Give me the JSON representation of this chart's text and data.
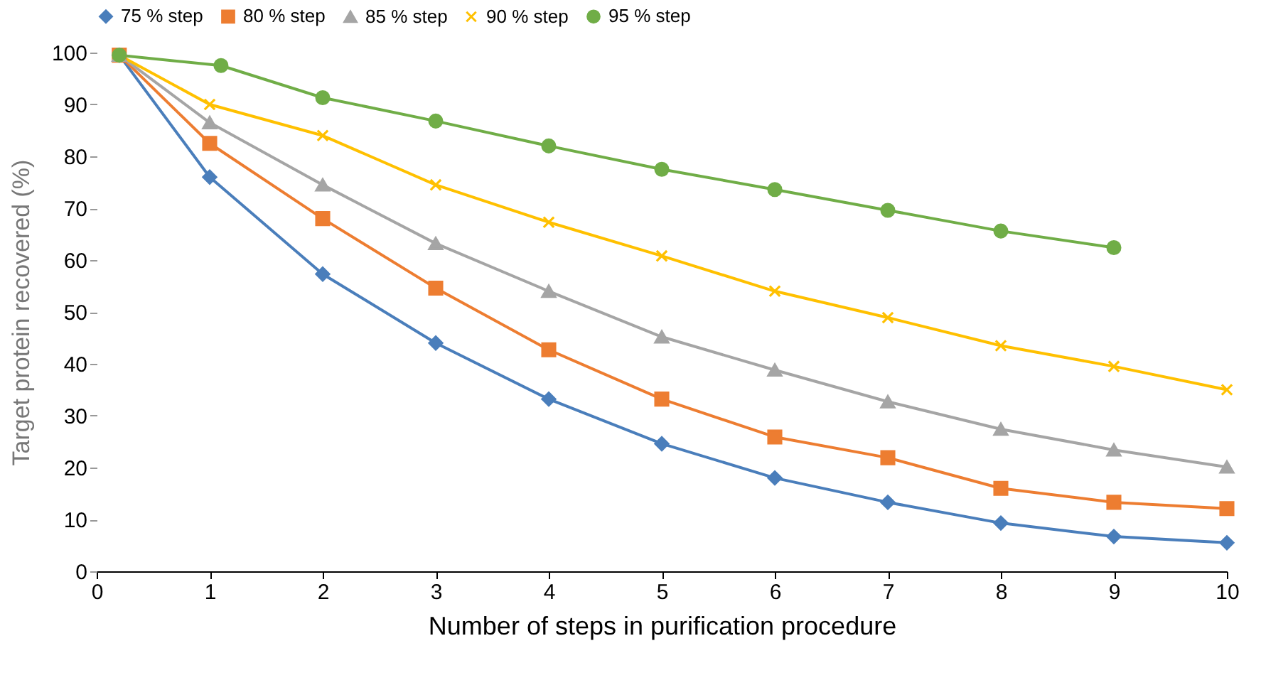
{
  "chart_data": {
    "type": "line",
    "xlabel": "Number of steps in purification procedure",
    "ylabel": "Target protein  recovered (%)",
    "xlim": [
      0,
      10
    ],
    "xticks": [
      0,
      1,
      2,
      3,
      4,
      5,
      6,
      7,
      8,
      9,
      10
    ],
    "ylim": [
      0,
      100
    ],
    "yticks": [
      0,
      10,
      20,
      30,
      40,
      50,
      60,
      70,
      80,
      90,
      100
    ],
    "grid": false,
    "legend": "top",
    "series": [
      {
        "name": "75 % step",
        "color": "#4a7ebb",
        "marker": "diamond",
        "x": [
          0.2,
          1,
          2,
          3,
          4,
          5,
          6,
          7,
          8,
          9,
          10
        ],
        "values": [
          99.5,
          76,
          57.3,
          44,
          33.2,
          24.6,
          18,
          13.3,
          9.3,
          6.7,
          5.5
        ]
      },
      {
        "name": "80 % step",
        "color": "#ed7d31",
        "marker": "square",
        "x": [
          0.2,
          1,
          2,
          3,
          4,
          5,
          6,
          7,
          8,
          9,
          10
        ],
        "values": [
          99.5,
          82.5,
          68,
          54.6,
          42.7,
          33.2,
          25.9,
          21.9,
          16,
          13.3,
          12.1
        ]
      },
      {
        "name": "85 % step",
        "color": "#a5a5a5",
        "marker": "triangle",
        "x": [
          0.2,
          1,
          2,
          3,
          4,
          5,
          6,
          7,
          8,
          9,
          10
        ],
        "values": [
          99.5,
          86.5,
          74.5,
          63.2,
          54,
          45.2,
          38.8,
          32.7,
          27.4,
          23.4,
          20.1
        ]
      },
      {
        "name": "90 % step",
        "color": "#ffc000",
        "marker": "cross",
        "x": [
          0.2,
          1,
          2,
          3,
          4,
          5,
          6,
          7,
          8,
          9,
          10
        ],
        "values": [
          99.5,
          90,
          84,
          74.5,
          67.3,
          60.8,
          54,
          48.9,
          43.5,
          39.5,
          35
        ]
      },
      {
        "name": "95 % step",
        "color": "#70ad47",
        "marker": "circle",
        "x": [
          0.2,
          1.1,
          2,
          3,
          4,
          5,
          6,
          7,
          8,
          9
        ],
        "values": [
          99.5,
          97.5,
          91.3,
          86.8,
          82,
          77.5,
          73.6,
          69.6,
          65.6,
          62.4
        ]
      }
    ]
  }
}
